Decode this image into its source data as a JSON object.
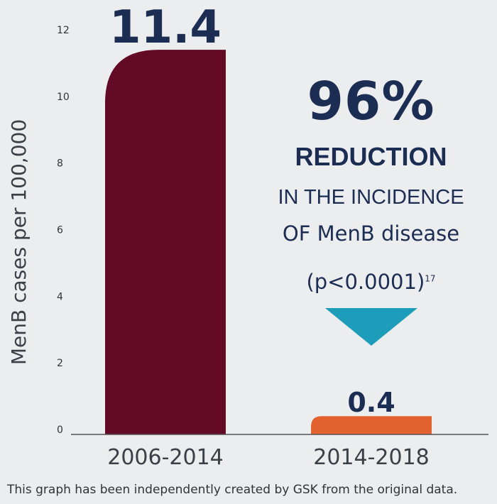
{
  "chart_data": {
    "type": "bar",
    "categories": [
      "2006-2014",
      "2014-2018"
    ],
    "values": [
      11.4,
      0.4
    ],
    "data_labels": [
      "11.4",
      "0.4"
    ],
    "ylabel": "MenB cases per 100,000",
    "ylim": [
      0,
      12
    ],
    "yticks": [
      0,
      2,
      4,
      6,
      8,
      10,
      12
    ],
    "grid": false,
    "bar_colors": [
      "#620a26",
      "#e2612f"
    ],
    "arrow_color": "#1d9dba",
    "text_color": "#1c2d53"
  },
  "annotation": {
    "percent": "96%",
    "reduction": "REDUCTION",
    "line1": "IN THE INCIDENCE",
    "line2": "OF MenB disease",
    "pvalue": "(p<0.0001)",
    "reference": "17"
  },
  "footnote": "This graph has been independently created by GSK from the original data."
}
